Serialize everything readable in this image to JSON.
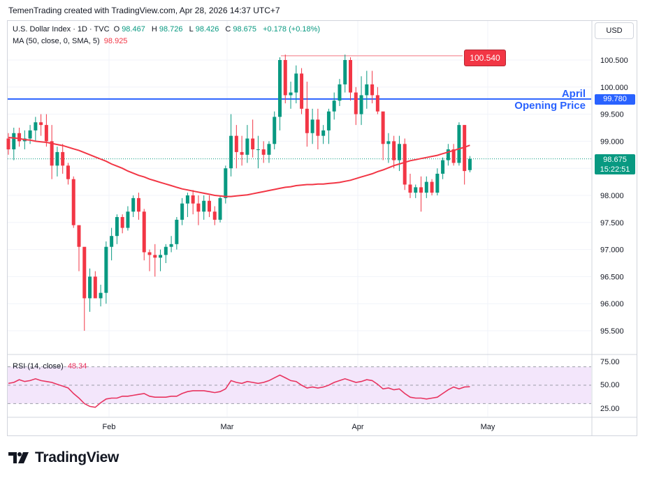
{
  "header": {
    "credit": "TemenTrading created with TradingView.com, Apr 28, 2026 14:37 UTC+7"
  },
  "legend": {
    "symbol": "U.S. Dollar Index · 1D · TVC",
    "o_label": "O",
    "o_value": "98.467",
    "h_label": "H",
    "h_value": "98.726",
    "l_label": "L",
    "l_value": "98.426",
    "c_label": "C",
    "c_value": "98.675",
    "change": "+0.178 (+0.18%)",
    "ma_label": "MA (50, close, 0, SMA, 5)",
    "ma_value": "98.925",
    "rsi_label": "RSI (14, close)",
    "rsi_value": "48.34"
  },
  "currency_button": "USD",
  "annotations": {
    "april_line_1": "April",
    "april_line_2": "Opening Price",
    "april_price": "99.780",
    "high_price": "100.540",
    "last_price": "98.675",
    "countdown": "15:22:51"
  },
  "colors": {
    "up": "#089981",
    "down": "#f23645",
    "ma": "#f23645",
    "level": "#2962ff",
    "rsi": "#e8335f",
    "rsi_band": "#f3e6fb"
  },
  "chart_data": {
    "type": "candlestick",
    "title": "U.S. Dollar Index · 1D · TVC",
    "price_axis_ticks": [
      "100.500",
      "100.000",
      "99.500",
      "99.000",
      "98.500",
      "98.000",
      "97.500",
      "97.000",
      "96.500",
      "96.000",
      "95.500"
    ],
    "ylim": [
      95.2,
      101.1
    ],
    "time_axis_labels": [
      "Feb",
      "Mar",
      "Apr",
      "May"
    ],
    "ohlc": [
      [
        99.05,
        99.15,
        98.75,
        98.85
      ],
      [
        98.85,
        99.25,
        98.65,
        99.15
      ],
      [
        99.15,
        99.25,
        98.9,
        99.0
      ],
      [
        99.0,
        99.2,
        98.85,
        99.05
      ],
      [
        99.05,
        99.3,
        98.95,
        99.2
      ],
      [
        99.2,
        99.45,
        99.0,
        99.35
      ],
      [
        99.35,
        99.5,
        99.1,
        99.3
      ],
      [
        99.3,
        99.5,
        98.9,
        99.0
      ],
      [
        99.0,
        99.3,
        98.3,
        98.55
      ],
      [
        98.55,
        98.9,
        98.35,
        98.8
      ],
      [
        98.8,
        98.95,
        98.4,
        98.55
      ],
      [
        98.55,
        98.6,
        98.2,
        98.3
      ],
      [
        98.3,
        98.35,
        97.4,
        97.45
      ],
      [
        97.45,
        97.4,
        96.6,
        97.05
      ],
      [
        97.05,
        97.0,
        95.5,
        96.1
      ],
      [
        96.1,
        96.65,
        95.85,
        96.5
      ],
      [
        96.5,
        96.6,
        96.1,
        96.1
      ],
      [
        96.1,
        96.35,
        95.95,
        96.2
      ],
      [
        96.2,
        97.15,
        96.0,
        97.05
      ],
      [
        97.05,
        97.4,
        96.8,
        97.25
      ],
      [
        97.25,
        97.65,
        97.1,
        97.6
      ],
      [
        97.6,
        97.65,
        97.3,
        97.4
      ],
      [
        97.4,
        97.8,
        97.35,
        97.7
      ],
      [
        97.7,
        98.0,
        97.6,
        97.95
      ],
      [
        97.95,
        98.05,
        97.55,
        97.7
      ],
      [
        97.7,
        97.75,
        96.8,
        96.95
      ],
      [
        96.95,
        97.0,
        96.6,
        96.9
      ],
      [
        96.9,
        97.1,
        96.5,
        96.85
      ],
      [
        96.85,
        97.0,
        96.6,
        96.9
      ],
      [
        96.9,
        97.1,
        96.75,
        97.05
      ],
      [
        97.05,
        97.25,
        96.95,
        97.1
      ],
      [
        97.1,
        97.6,
        97.0,
        97.55
      ],
      [
        97.55,
        97.95,
        97.45,
        97.85
      ],
      [
        97.85,
        98.05,
        97.6,
        98.0
      ],
      [
        98.0,
        98.1,
        97.65,
        97.85
      ],
      [
        97.85,
        98.0,
        97.45,
        97.7
      ],
      [
        97.7,
        98.0,
        97.55,
        97.9
      ],
      [
        97.9,
        98.0,
        97.6,
        97.7
      ],
      [
        97.7,
        97.8,
        97.45,
        97.55
      ],
      [
        97.55,
        98.0,
        97.5,
        97.95
      ],
      [
        97.95,
        98.55,
        97.85,
        98.5
      ],
      [
        98.5,
        99.5,
        98.35,
        99.1
      ],
      [
        99.1,
        99.3,
        98.5,
        98.8
      ],
      [
        98.8,
        99.1,
        98.55,
        98.75
      ],
      [
        98.75,
        99.3,
        98.6,
        99.05
      ],
      [
        99.05,
        99.4,
        98.7,
        98.85
      ],
      [
        98.85,
        99.1,
        98.5,
        98.85
      ],
      [
        98.85,
        99.0,
        98.6,
        98.75
      ],
      [
        98.75,
        99.0,
        98.6,
        98.95
      ],
      [
        98.95,
        99.55,
        98.85,
        99.45
      ],
      [
        99.45,
        100.55,
        99.2,
        100.5
      ],
      [
        100.5,
        100.6,
        99.7,
        99.85
      ],
      [
        99.85,
        100.1,
        99.6,
        99.9
      ],
      [
        99.9,
        100.4,
        99.7,
        100.25
      ],
      [
        100.25,
        100.35,
        99.5,
        99.6
      ],
      [
        99.6,
        100.1,
        98.9,
        99.15
      ],
      [
        99.15,
        99.6,
        98.95,
        99.4
      ],
      [
        99.4,
        99.6,
        98.85,
        99.1
      ],
      [
        99.1,
        99.3,
        98.95,
        99.2
      ],
      [
        99.2,
        99.6,
        98.95,
        99.55
      ],
      [
        99.55,
        99.9,
        99.4,
        99.75
      ],
      [
        99.75,
        100.15,
        99.65,
        100.05
      ],
      [
        100.05,
        100.6,
        99.9,
        100.5
      ],
      [
        100.5,
        100.55,
        99.75,
        99.9
      ],
      [
        99.9,
        100.0,
        99.3,
        99.5
      ],
      [
        99.5,
        100.2,
        99.3,
        99.85
      ],
      [
        99.85,
        100.3,
        99.6,
        100.05
      ],
      [
        100.05,
        100.3,
        99.7,
        99.85
      ],
      [
        99.85,
        100.0,
        99.5,
        99.55
      ],
      [
        99.55,
        99.5,
        98.65,
        98.95
      ],
      [
        98.95,
        99.15,
        98.6,
        99.0
      ],
      [
        99.0,
        99.1,
        98.5,
        98.65
      ],
      [
        98.65,
        99.1,
        98.45,
        98.95
      ],
      [
        98.95,
        99.05,
        98.1,
        98.2
      ],
      [
        98.2,
        98.4,
        97.95,
        98.05
      ],
      [
        98.05,
        98.2,
        97.95,
        98.15
      ],
      [
        98.15,
        98.35,
        97.7,
        98.05
      ],
      [
        98.05,
        98.35,
        97.95,
        98.25
      ],
      [
        98.25,
        98.3,
        98.0,
        98.05
      ],
      [
        98.05,
        98.5,
        98.0,
        98.4
      ],
      [
        98.4,
        98.7,
        98.3,
        98.65
      ],
      [
        98.65,
        98.95,
        98.55,
        98.85
      ],
      [
        98.85,
        98.95,
        98.55,
        98.6
      ],
      [
        98.6,
        99.35,
        98.55,
        99.3
      ],
      [
        99.3,
        99.3,
        98.2,
        98.45
      ],
      [
        98.467,
        98.726,
        98.426,
        98.675
      ]
    ],
    "ma_50": [
      99.07,
      99.06,
      99.05,
      99.03,
      99.02,
      99.0,
      98.99,
      98.98,
      98.96,
      98.94,
      98.92,
      98.89,
      98.86,
      98.83,
      98.79,
      98.75,
      98.71,
      98.67,
      98.63,
      98.58,
      98.54,
      98.5,
      98.45,
      98.41,
      98.37,
      98.34,
      98.3,
      98.27,
      98.24,
      98.21,
      98.18,
      98.15,
      98.12,
      98.1,
      98.08,
      98.06,
      98.04,
      98.02,
      98.0,
      97.99,
      97.98,
      97.98,
      97.99,
      98.0,
      98.01,
      98.03,
      98.05,
      98.07,
      98.09,
      98.11,
      98.13,
      98.15,
      98.16,
      98.18,
      98.19,
      98.2,
      98.2,
      98.21,
      98.21,
      98.22,
      98.23,
      98.24,
      98.26,
      98.28,
      98.31,
      98.34,
      98.37,
      98.4,
      98.44,
      98.47,
      98.51,
      98.55,
      98.58,
      98.61,
      98.64,
      98.66,
      98.68,
      98.7,
      98.72,
      98.74,
      98.77,
      98.8,
      98.83,
      98.86,
      98.89,
      98.925
    ],
    "april_opening_price": 99.78,
    "highlighted_high": 100.54,
    "rsi": {
      "name": "RSI (14, close)",
      "ticks": [
        "75.00",
        "50.00",
        "25.00"
      ],
      "ylim": [
        20,
        80
      ],
      "upper": 70,
      "lower": 30,
      "values": [
        52,
        53,
        56,
        54,
        55,
        57,
        55,
        54,
        53,
        51,
        49,
        47,
        41,
        36,
        30,
        27,
        26,
        31,
        35,
        36,
        36,
        38,
        38,
        39,
        40,
        41,
        38,
        37,
        37,
        37,
        38,
        38,
        41,
        43,
        44,
        44,
        44,
        43,
        42,
        43,
        46,
        55,
        53,
        52,
        54,
        53,
        52,
        53,
        55,
        58,
        61,
        58,
        55,
        54,
        50,
        47,
        48,
        47,
        48,
        50,
        53,
        55,
        57,
        55,
        53,
        54,
        56,
        55,
        51,
        46,
        47,
        45,
        46,
        41,
        37,
        36,
        36,
        35,
        36,
        37,
        41,
        45,
        48,
        46,
        48,
        48.34
      ]
    }
  }
}
